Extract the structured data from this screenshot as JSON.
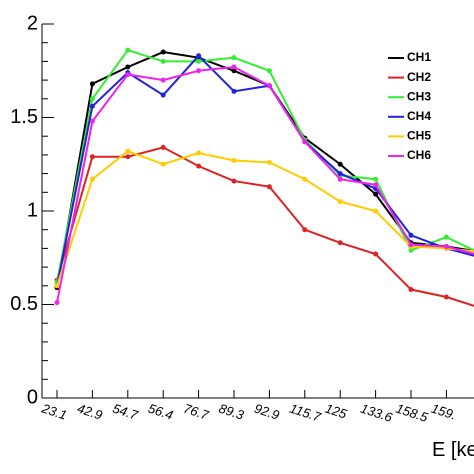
{
  "chart_data": {
    "type": "line",
    "x_label": "E [ke",
    "categories": [
      "23.1",
      "42.9",
      "54.7",
      "56.4",
      "76.7",
      "89.3",
      "92.9",
      "115.7",
      "125",
      "133.6",
      "158.5",
      "159.",
      null
    ],
    "series": [
      {
        "name": "CH1",
        "color": "#000000",
        "values": [
          0.59,
          1.68,
          1.77,
          1.85,
          1.82,
          1.75,
          1.67,
          1.39,
          1.25,
          1.09,
          0.83,
          0.81,
          0.78
        ]
      },
      {
        "name": "CH2",
        "color": "#dd2222",
        "values": [
          0.63,
          1.29,
          1.29,
          1.34,
          1.24,
          1.16,
          1.13,
          0.9,
          0.83,
          0.77,
          0.58,
          0.54,
          0.48
        ]
      },
      {
        "name": "CH3",
        "color": "#33ee33",
        "values": [
          0.62,
          1.6,
          1.86,
          1.8,
          1.8,
          1.82,
          1.75,
          1.38,
          1.19,
          1.17,
          0.79,
          0.86,
          0.77
        ]
      },
      {
        "name": "CH4",
        "color": "#2222dd",
        "values": [
          0.6,
          1.56,
          1.74,
          1.62,
          1.83,
          1.64,
          1.67,
          1.37,
          1.2,
          1.12,
          0.87,
          0.8,
          0.75
        ]
      },
      {
        "name": "CH5",
        "color": "#ffcc00",
        "values": [
          0.6,
          1.17,
          1.32,
          1.25,
          1.31,
          1.27,
          1.26,
          1.17,
          1.05,
          1.0,
          0.81,
          0.8,
          0.78
        ]
      },
      {
        "name": "CH6",
        "color": "#ee22ee",
        "values": [
          0.51,
          1.48,
          1.73,
          1.7,
          1.75,
          1.77,
          1.67,
          1.37,
          1.17,
          1.14,
          0.82,
          0.81,
          0.76
        ]
      }
    ],
    "ylim": [
      0,
      2
    ],
    "yticks": [
      0,
      0.5,
      1,
      1.5,
      2
    ],
    "legend": "top-right"
  }
}
